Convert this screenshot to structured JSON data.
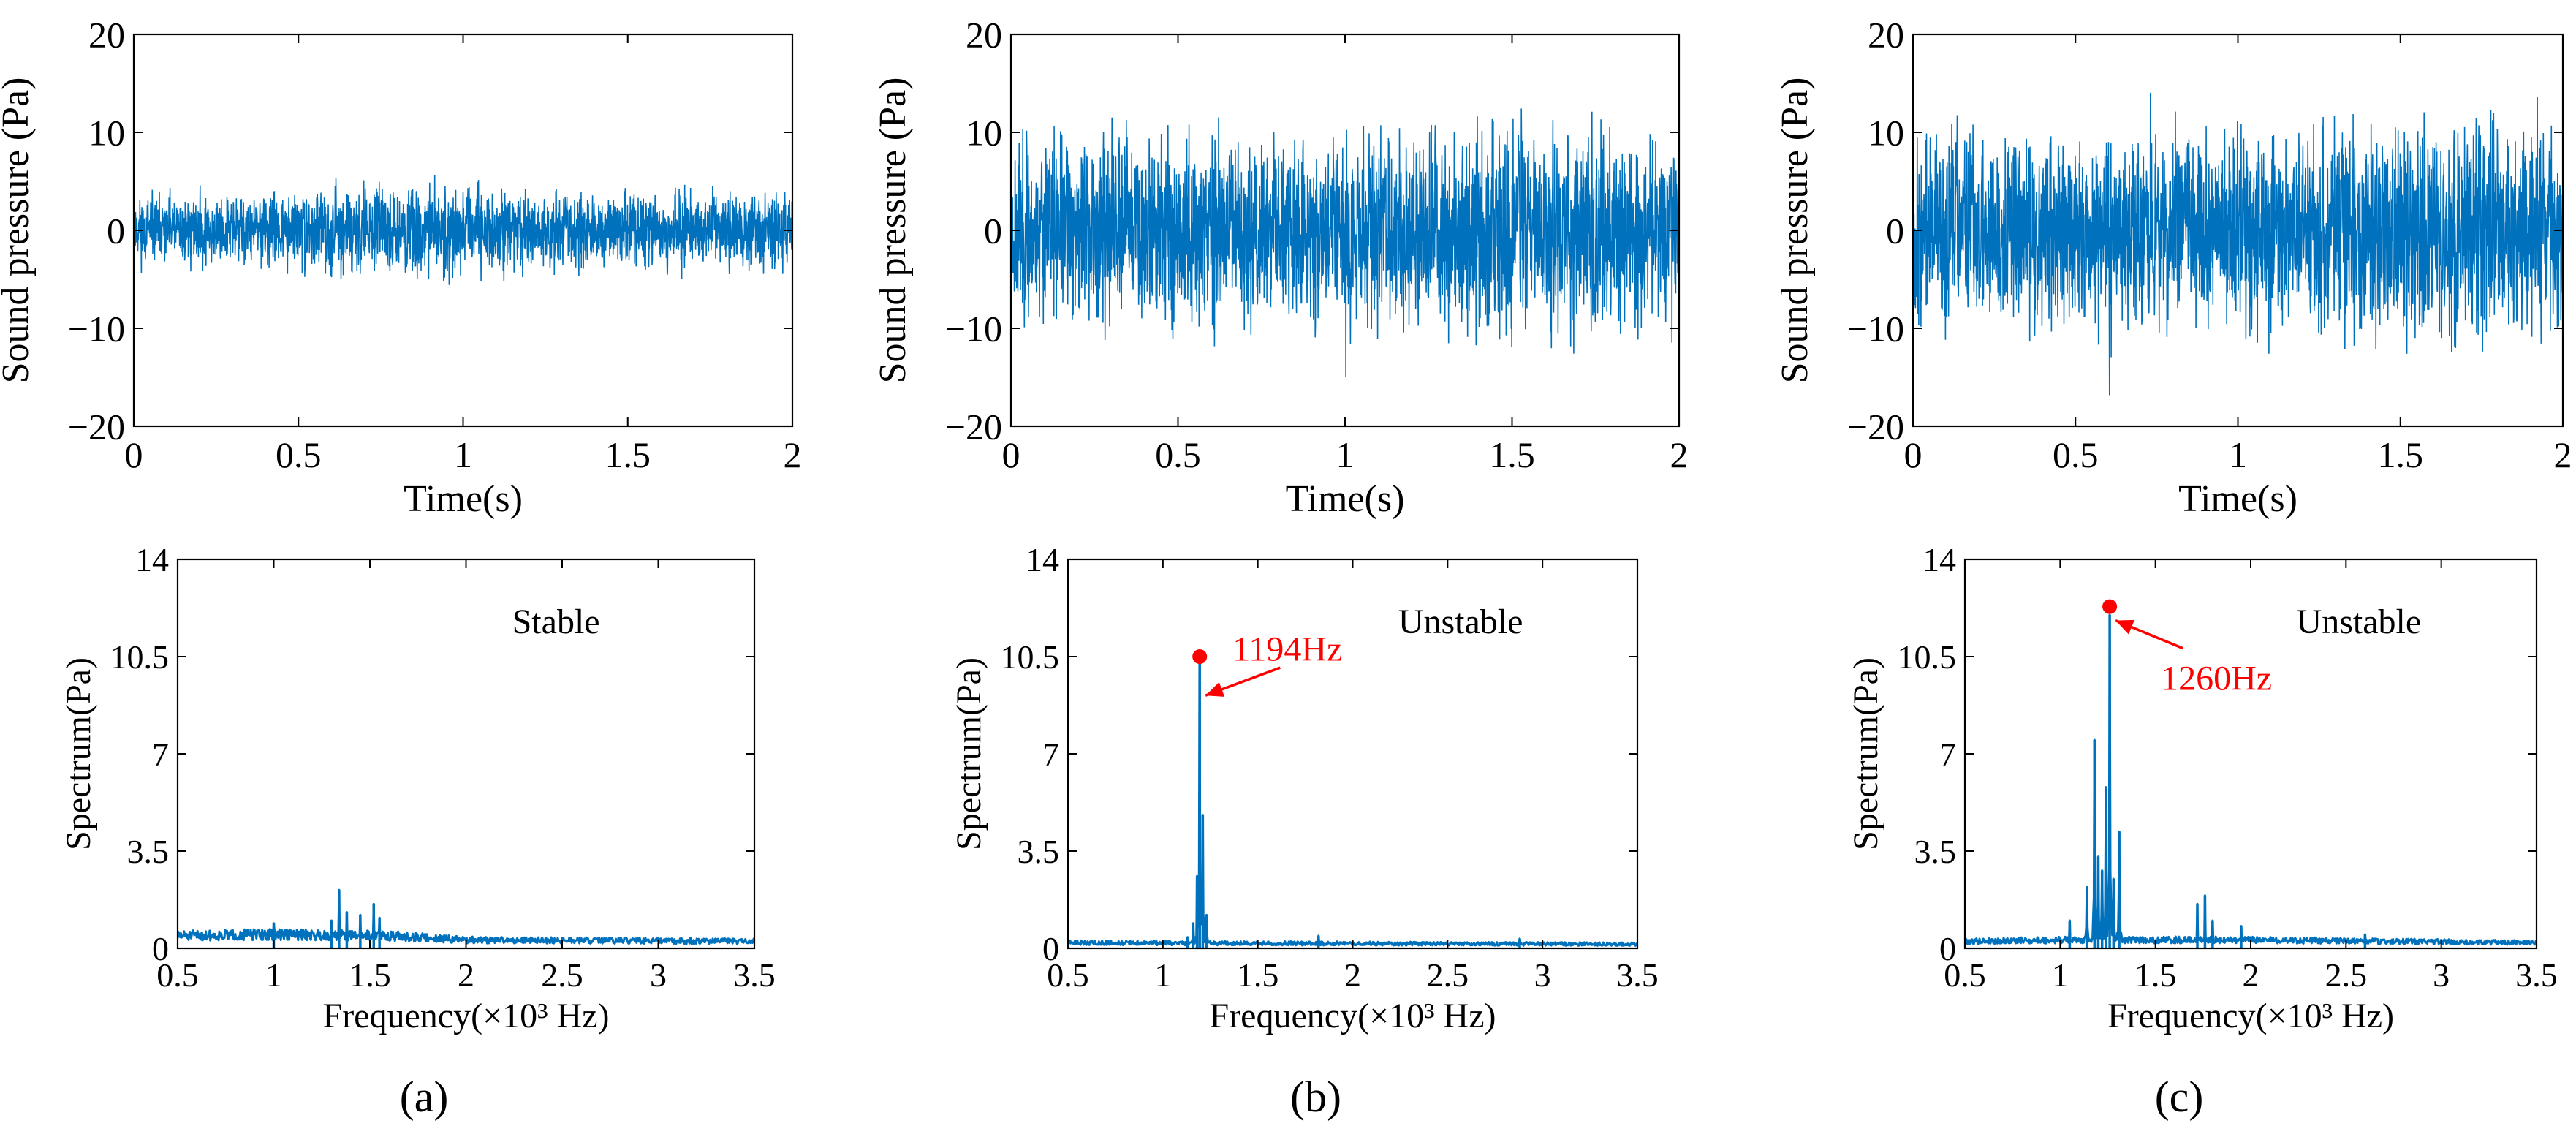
{
  "figure": {
    "colors": {
      "line": "#0072bd",
      "marker": "#ff0000",
      "axis": "#000000",
      "background": "#ffffff"
    }
  },
  "chart_data": [
    {
      "panel": "a",
      "kind": "time",
      "type": "line",
      "xlabel": "Time(s)",
      "ylabel": "Sound pressure (Pa)",
      "xlim": [
        0,
        2
      ],
      "ylim": [
        -20,
        20
      ],
      "xticks": [
        0,
        0.5,
        1,
        1.5,
        2
      ],
      "xtick_labels": [
        "0",
        "0.5",
        "1",
        "1.5",
        "2"
      ],
      "yticks": [
        -20,
        -10,
        0,
        10,
        20
      ],
      "ytick_labels": [
        "−20",
        "−10",
        "0",
        "10",
        "20"
      ],
      "envelope": {
        "x": [
          0,
          0.4,
          0.8,
          0.9,
          1.0,
          1.2,
          1.4,
          1.6,
          1.8,
          2.0
        ],
        "amp": [
          4.5,
          4.8,
          5.5,
          6.5,
          5.8,
          5.2,
          5.0,
          4.8,
          5.2,
          4.8
        ]
      },
      "seed": 11
    },
    {
      "panel": "b",
      "kind": "time",
      "type": "line",
      "xlabel": "Time(s)",
      "ylabel": "Sound pressure (Pa)",
      "xlim": [
        0,
        2
      ],
      "ylim": [
        -20,
        20
      ],
      "xticks": [
        0,
        0.5,
        1,
        1.5,
        2
      ],
      "xtick_labels": [
        "0",
        "0.5",
        "1",
        "1.5",
        "2"
      ],
      "yticks": [
        -20,
        -10,
        0,
        10,
        20
      ],
      "ytick_labels": [
        "−20",
        "−10",
        "0",
        "10",
        "20"
      ],
      "envelope": {
        "x": [
          0,
          0.5,
          1.0,
          1.5,
          2.0
        ],
        "amp": [
          12,
          13,
          12.5,
          14,
          12.5
        ]
      },
      "seed": 23
    },
    {
      "panel": "c",
      "kind": "time",
      "type": "line",
      "xlabel": "Time(s)",
      "ylabel": "Sound pressure (Pa)",
      "xlim": [
        0,
        2
      ],
      "ylim": [
        -20,
        20
      ],
      "xticks": [
        0,
        0.5,
        1,
        1.5,
        2
      ],
      "xtick_labels": [
        "0",
        "0.5",
        "1",
        "1.5",
        "2"
      ],
      "yticks": [
        -20,
        -10,
        0,
        10,
        20
      ],
      "ytick_labels": [
        "−20",
        "−10",
        "0",
        "10",
        "20"
      ],
      "envelope": {
        "x": [
          0,
          0.5,
          1.0,
          1.5,
          2.0
        ],
        "amp": [
          13,
          13,
          13.5,
          14.5,
          13
        ]
      },
      "seed": 37
    },
    {
      "panel": "a",
      "kind": "spectrum",
      "type": "line",
      "xlabel": "Frequency(×10³ Hz)",
      "ylabel": "Spectrum(Pa)",
      "xlim": [
        0.5,
        3.5
      ],
      "ylim": [
        0,
        14
      ],
      "xticks": [
        0.5,
        1,
        1.5,
        2,
        2.5,
        3,
        3.5
      ],
      "xtick_labels": [
        "0.5",
        "1",
        "1.5",
        "2",
        "2.5",
        "3",
        "3.5"
      ],
      "yticks": [
        0,
        3.5,
        7,
        10.5,
        14
      ],
      "ytick_labels": [
        "0",
        "3.5",
        "7",
        "10.5",
        "14"
      ],
      "annotation_text": "Stable",
      "baseline": {
        "x": [
          0.5,
          1.0,
          1.6,
          2.0,
          3.5
        ],
        "v": [
          0.45,
          0.5,
          0.45,
          0.3,
          0.25
        ]
      },
      "peaks": [
        {
          "f": 1.0,
          "v": 0.9
        },
        {
          "f": 1.3,
          "v": 1.0
        },
        {
          "f": 1.34,
          "v": 2.1
        },
        {
          "f": 1.38,
          "v": 1.3
        },
        {
          "f": 1.45,
          "v": 1.2
        },
        {
          "f": 1.52,
          "v": 1.6
        },
        {
          "f": 1.55,
          "v": 1.1
        }
      ],
      "seed": 51
    },
    {
      "panel": "b",
      "kind": "spectrum",
      "type": "line",
      "xlabel": "Frequency(×10³ Hz)",
      "ylabel": "Spectrum(Pa)",
      "xlim": [
        0.5,
        3.5
      ],
      "ylim": [
        0,
        14
      ],
      "xticks": [
        0.5,
        1,
        1.5,
        2,
        2.5,
        3,
        3.5
      ],
      "xtick_labels": [
        "0.5",
        "1",
        "1.5",
        "2",
        "2.5",
        "3",
        "3.5"
      ],
      "yticks": [
        0,
        3.5,
        7,
        10.5,
        14
      ],
      "ytick_labels": [
        "0",
        "3.5",
        "7",
        "10.5",
        "14"
      ],
      "annotation_text": "Unstable",
      "peak_label": "1194Hz",
      "peak_marker": {
        "f": 1.194,
        "v": 10.5
      },
      "baseline": {
        "x": [
          0.5,
          3.5
        ],
        "v": [
          0.2,
          0.15
        ]
      },
      "peaks": [
        {
          "f": 1.13,
          "v": 0.4
        },
        {
          "f": 1.16,
          "v": 0.9
        },
        {
          "f": 1.18,
          "v": 2.6
        },
        {
          "f": 1.194,
          "v": 10.4
        },
        {
          "f": 1.21,
          "v": 4.8
        },
        {
          "f": 1.23,
          "v": 1.2
        },
        {
          "f": 1.82,
          "v": 0.45
        },
        {
          "f": 2.88,
          "v": 0.35
        }
      ],
      "seed": 63
    },
    {
      "panel": "c",
      "kind": "spectrum",
      "type": "line",
      "xlabel": "Frequency(×10³ Hz)",
      "ylabel": "Spectrum(Pa)",
      "xlim": [
        0.5,
        3.5
      ],
      "ylim": [
        0,
        14
      ],
      "xticks": [
        0.5,
        1,
        1.5,
        2,
        2.5,
        3,
        3.5
      ],
      "xtick_labels": [
        "0.5",
        "1",
        "1.5",
        "2",
        "2.5",
        "3",
        "3.5"
      ],
      "yticks": [
        0,
        3.5,
        7,
        10.5,
        14
      ],
      "ytick_labels": [
        "0",
        "3.5",
        "7",
        "10.5",
        "14"
      ],
      "annotation_text": "Unstable",
      "peak_label": "1260Hz",
      "peak_marker": {
        "f": 1.26,
        "v": 12.3
      },
      "baseline": {
        "x": [
          0.5,
          1.0,
          2.0,
          3.5
        ],
        "v": [
          0.25,
          0.3,
          0.3,
          0.2
        ]
      },
      "peaks": [
        {
          "f": 1.05,
          "v": 1.0
        },
        {
          "f": 1.14,
          "v": 2.2
        },
        {
          "f": 1.18,
          "v": 7.5
        },
        {
          "f": 1.2,
          "v": 3.3
        },
        {
          "f": 1.22,
          "v": 2.8
        },
        {
          "f": 1.24,
          "v": 5.8
        },
        {
          "f": 1.26,
          "v": 12.0
        },
        {
          "f": 1.28,
          "v": 2.5
        },
        {
          "f": 1.31,
          "v": 4.2
        },
        {
          "f": 1.72,
          "v": 1.6
        },
        {
          "f": 1.76,
          "v": 1.9
        },
        {
          "f": 1.8,
          "v": 1.0
        },
        {
          "f": 1.95,
          "v": 0.8
        },
        {
          "f": 2.6,
          "v": 0.5
        }
      ],
      "seed": 79
    }
  ],
  "panel_labels": [
    "(a)",
    "(b)",
    "(c)"
  ]
}
